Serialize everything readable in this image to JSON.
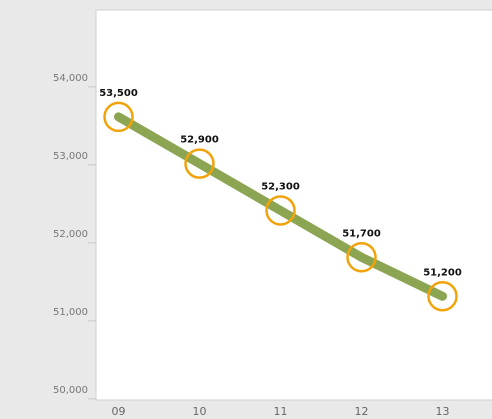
{
  "chart_data": {
    "type": "line",
    "categories": [
      "09",
      "10",
      "11",
      "12",
      "13"
    ],
    "series": [
      {
        "values": [
          53500,
          52900,
          52300,
          51700,
          51200
        ],
        "value_labels": [
          "53,500",
          "52,900",
          "52,300",
          "51,700",
          "51,200"
        ],
        "color": "#8ca552",
        "marker_color": "#f0a30a"
      }
    ],
    "ylim": [
      49870,
      54870
    ],
    "yticks": [
      {
        "value": 50000,
        "label": "50,000"
      },
      {
        "value": 51000,
        "label": "51,000"
      },
      {
        "value": 52000,
        "label": "52,000"
      },
      {
        "value": 53000,
        "label": "53,000"
      },
      {
        "value": 54000,
        "label": "54,000"
      }
    ]
  }
}
